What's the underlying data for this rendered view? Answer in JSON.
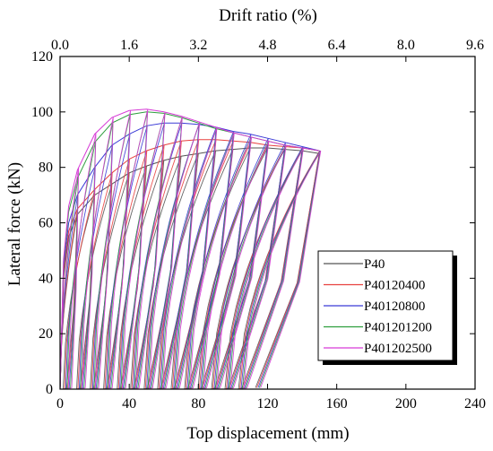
{
  "chart_data": {
    "type": "line",
    "title": "",
    "xlabel": "Top displacement (mm)",
    "ylabel": "Lateral force (kN)",
    "x2label": "Drift ratio (%)",
    "xlim": [
      0,
      240
    ],
    "ylim": [
      0,
      120
    ],
    "x2lim": [
      0,
      9.6
    ],
    "x_ticks": [
      0,
      40,
      80,
      120,
      160,
      200,
      240
    ],
    "y_ticks": [
      0,
      20,
      40,
      60,
      80,
      100,
      120
    ],
    "x2_ticks": [
      "0.0",
      "1.6",
      "3.2",
      "4.8",
      "6.4",
      "8.0",
      "9.6"
    ],
    "grid": false,
    "legend_position": "bottom-right",
    "series": [
      {
        "name": "P40",
        "color": "#555555",
        "envelope_x": [
          0,
          2,
          5,
          10,
          20,
          30,
          40,
          50,
          60,
          70,
          80,
          90,
          100,
          110,
          120,
          130,
          140,
          150
        ],
        "envelope_y": [
          0,
          40,
          55,
          63,
          70,
          74,
          78,
          80.5,
          82.5,
          84,
          85,
          86,
          86.5,
          87,
          87,
          86.5,
          86,
          85
        ],
        "cycle_peaks": [
          10,
          20,
          30,
          40,
          50,
          60,
          70,
          80,
          90,
          100,
          110,
          120,
          130,
          140,
          150
        ]
      },
      {
        "name": "P40120400",
        "color": "#e8413f",
        "envelope_x": [
          0,
          2,
          5,
          10,
          20,
          30,
          40,
          50,
          60,
          70,
          80,
          90,
          100,
          110,
          120,
          130,
          140,
          150
        ],
        "envelope_y": [
          0,
          42,
          57,
          65,
          72,
          78,
          83,
          86,
          88,
          89.5,
          90,
          90,
          89.5,
          89,
          88,
          87.5,
          87,
          86
        ],
        "cycle_peaks": [
          10,
          20,
          30,
          40,
          50,
          60,
          70,
          80,
          90,
          100,
          110,
          120,
          130,
          140,
          150
        ]
      },
      {
        "name": "P40120800",
        "color": "#3b3bd6",
        "envelope_x": [
          0,
          2,
          5,
          10,
          20,
          30,
          40,
          50,
          60,
          70,
          80,
          90,
          100,
          110,
          120,
          130,
          140,
          150
        ],
        "envelope_y": [
          0,
          44,
          60,
          70,
          80,
          88,
          92,
          95,
          96,
          96,
          95.5,
          94.5,
          93,
          92,
          90.5,
          89,
          87.5,
          86
        ],
        "cycle_peaks": [
          10,
          20,
          30,
          40,
          50,
          60,
          70,
          80,
          90,
          100,
          110,
          120,
          130,
          140,
          150
        ]
      },
      {
        "name": "P401201200",
        "color": "#2e9e3e",
        "envelope_x": [
          0,
          2,
          5,
          10,
          20,
          30,
          40,
          50,
          60,
          70,
          80,
          90,
          100,
          110,
          120,
          130,
          140,
          150
        ],
        "envelope_y": [
          0,
          46,
          64,
          76,
          89,
          96,
          99,
          100,
          99.5,
          98,
          96,
          94,
          92.5,
          91,
          89.5,
          88,
          87,
          86
        ],
        "cycle_peaks": [
          10,
          20,
          30,
          40,
          50,
          60,
          70,
          80,
          90,
          100,
          110,
          120,
          130,
          140,
          150
        ]
      },
      {
        "name": "P401202500",
        "color": "#d63bd6",
        "envelope_x": [
          0,
          2,
          5,
          10,
          20,
          30,
          40,
          50,
          60,
          70,
          80,
          90,
          100,
          110,
          120,
          130,
          140,
          150
        ],
        "envelope_y": [
          0,
          47,
          66,
          79,
          92,
          98,
          100.5,
          101,
          100,
          98.5,
          96.5,
          94.5,
          92.5,
          91,
          89.5,
          88,
          87,
          86
        ],
        "cycle_peaks": [
          10,
          20,
          30,
          40,
          50,
          60,
          70,
          80,
          90,
          100,
          110,
          120,
          130,
          140,
          150
        ]
      }
    ]
  }
}
